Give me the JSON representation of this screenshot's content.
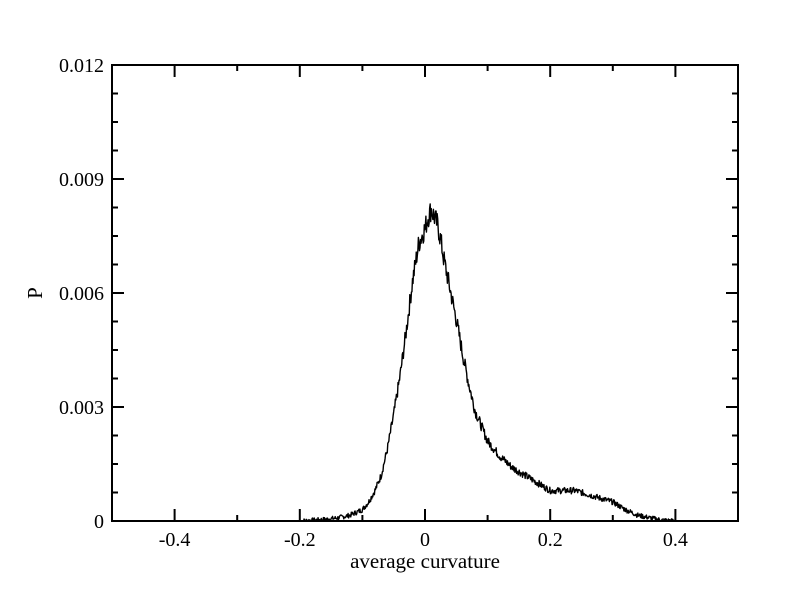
{
  "chart_data": {
    "type": "line",
    "title": "",
    "xlabel": "average curvature",
    "ylabel": "P",
    "xlim": [
      -0.5,
      0.5
    ],
    "ylim": [
      0,
      0.012
    ],
    "grid": false,
    "legend": "none",
    "line_color": "#000000",
    "x_ticks": [
      {
        "value": -0.4,
        "label": "-0.4"
      },
      {
        "value": -0.2,
        "label": "-0.2"
      },
      {
        "value": 0,
        "label": "0"
      },
      {
        "value": 0.2,
        "label": "0.2"
      },
      {
        "value": 0.4,
        "label": "0.4"
      }
    ],
    "y_ticks": [
      {
        "value": 0,
        "label": "0"
      },
      {
        "value": 0.003,
        "label": "0.003"
      },
      {
        "value": 0.006,
        "label": "0.006"
      },
      {
        "value": 0.009,
        "label": "0.009"
      },
      {
        "value": 0.012,
        "label": "0.012"
      }
    ],
    "series": [
      {
        "x": [
          -0.2,
          -0.18,
          -0.16,
          -0.14,
          -0.12,
          -0.1,
          -0.09,
          -0.08,
          -0.07,
          -0.06,
          -0.05,
          -0.04,
          -0.03,
          -0.02,
          -0.01,
          0.0,
          0.005,
          0.01,
          0.015,
          0.02,
          0.025,
          0.03,
          0.04,
          0.05,
          0.06,
          0.07,
          0.08,
          0.09,
          0.1,
          0.12,
          0.14,
          0.16,
          0.18,
          0.2,
          0.22,
          0.24,
          0.26,
          0.28,
          0.3,
          0.32,
          0.34,
          0.36,
          0.38,
          0.4
        ],
        "y": [
          0.0,
          2e-05,
          4e-05,
          8e-05,
          0.00015,
          0.0003,
          0.0005,
          0.0008,
          0.0012,
          0.0019,
          0.0028,
          0.0038,
          0.005,
          0.0063,
          0.0073,
          0.0077,
          0.008,
          0.0082,
          0.008,
          0.0078,
          0.0074,
          0.0069,
          0.0061,
          0.0053,
          0.0044,
          0.0036,
          0.0029,
          0.0025,
          0.0021,
          0.0017,
          0.0014,
          0.0012,
          0.001,
          0.0008,
          0.0008,
          0.0008,
          0.0007,
          0.0006,
          0.0005,
          0.0003,
          0.00015,
          8e-05,
          2e-05,
          0.0
        ]
      }
    ]
  }
}
